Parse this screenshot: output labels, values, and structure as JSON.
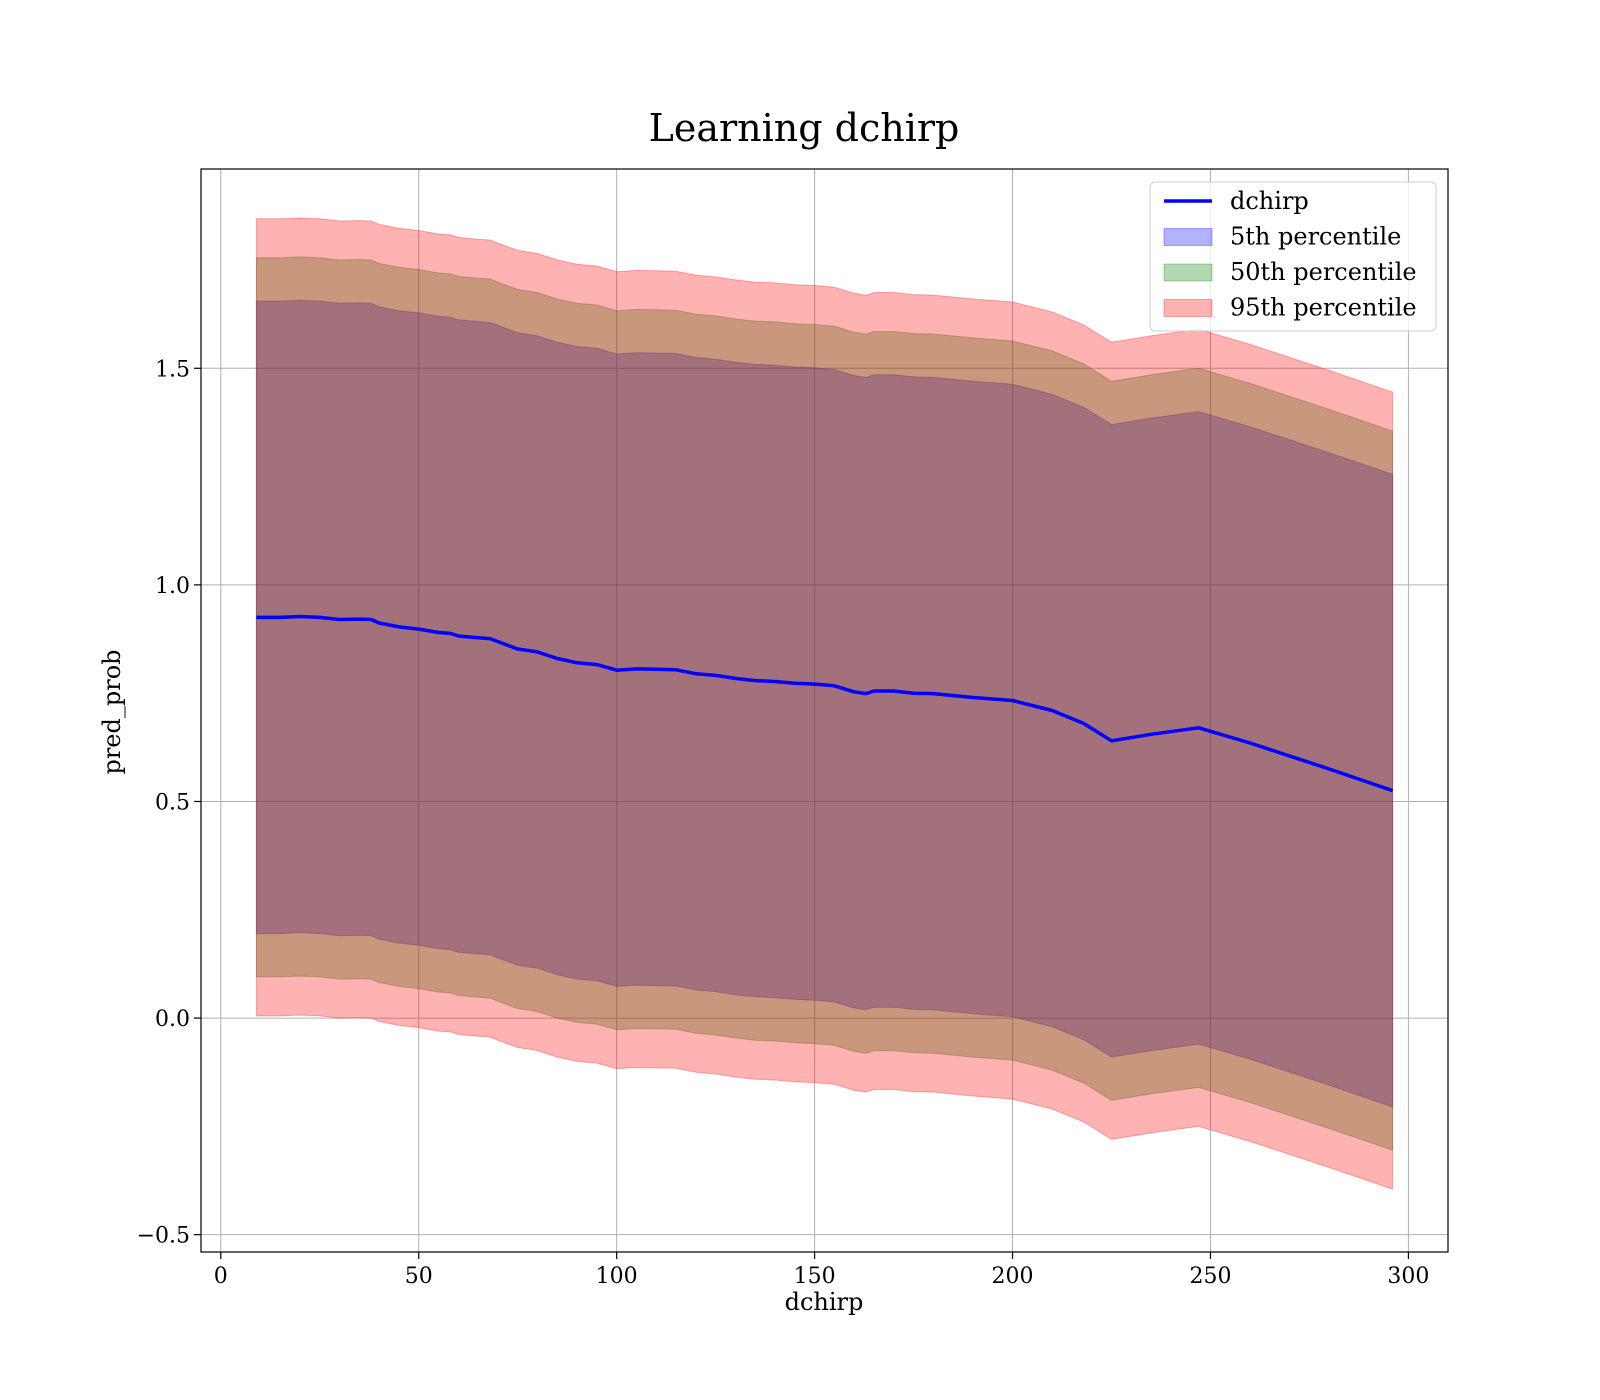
{
  "chart_data": {
    "type": "line",
    "title": "Learning dchirp",
    "xlabel": "dchirp",
    "ylabel": "pred_prob",
    "xlim": [
      -5,
      310
    ],
    "ylim": [
      -0.54,
      1.96
    ],
    "xticks": [
      0,
      50,
      100,
      150,
      200,
      250,
      300
    ],
    "yticks": [
      -0.5,
      0.0,
      0.5,
      1.0,
      1.5
    ],
    "xtick_labels": [
      "0",
      "50",
      "100",
      "150",
      "200",
      "250",
      "300"
    ],
    "ytick_labels": [
      "−0.5",
      "0.0",
      "0.5",
      "1.0",
      "1.5"
    ],
    "grid": true,
    "legend_position": "top-right",
    "x": [
      9,
      15,
      20,
      25,
      30,
      35,
      38,
      40,
      45,
      50,
      55,
      58,
      60,
      65,
      68,
      70,
      75,
      78,
      80,
      85,
      90,
      95,
      100,
      105,
      110,
      115,
      120,
      125,
      130,
      135,
      140,
      145,
      150,
      155,
      160,
      163,
      165,
      170,
      175,
      180,
      190,
      200,
      210,
      218,
      225,
      235,
      247,
      260,
      280,
      296
    ],
    "series": [
      {
        "name": "dchirp",
        "kind": "line",
        "color": "#0000ff",
        "values": [
          0.925,
          0.925,
          0.927,
          0.925,
          0.92,
          0.921,
          0.92,
          0.912,
          0.903,
          0.898,
          0.89,
          0.888,
          0.882,
          0.878,
          0.876,
          0.869,
          0.852,
          0.848,
          0.845,
          0.83,
          0.82,
          0.816,
          0.803,
          0.806,
          0.805,
          0.804,
          0.795,
          0.791,
          0.784,
          0.779,
          0.777,
          0.773,
          0.771,
          0.767,
          0.753,
          0.749,
          0.755,
          0.755,
          0.75,
          0.749,
          0.74,
          0.733,
          0.71,
          0.68,
          0.64,
          0.655,
          0.67,
          0.635,
          0.575,
          0.525
        ]
      },
      {
        "name": "5th percentile",
        "kind": "band",
        "color": "#0000ff",
        "lower": [
          0.195,
          0.195,
          0.197,
          0.195,
          0.19,
          0.191,
          0.19,
          0.182,
          0.173,
          0.168,
          0.16,
          0.158,
          0.152,
          0.148,
          0.146,
          0.139,
          0.122,
          0.118,
          0.115,
          0.1,
          0.09,
          0.086,
          0.073,
          0.076,
          0.075,
          0.074,
          0.065,
          0.061,
          0.054,
          0.049,
          0.047,
          0.043,
          0.041,
          0.037,
          0.023,
          0.019,
          0.025,
          0.025,
          0.02,
          0.019,
          0.01,
          0.003,
          -0.02,
          -0.05,
          -0.09,
          -0.075,
          -0.06,
          -0.095,
          -0.155,
          -0.205
        ],
        "upper": [
          1.655,
          1.655,
          1.657,
          1.655,
          1.65,
          1.651,
          1.65,
          1.642,
          1.633,
          1.628,
          1.62,
          1.618,
          1.612,
          1.608,
          1.606,
          1.599,
          1.582,
          1.578,
          1.575,
          1.56,
          1.55,
          1.546,
          1.533,
          1.536,
          1.535,
          1.534,
          1.525,
          1.521,
          1.514,
          1.509,
          1.507,
          1.503,
          1.501,
          1.497,
          1.483,
          1.479,
          1.485,
          1.485,
          1.48,
          1.479,
          1.47,
          1.463,
          1.44,
          1.41,
          1.37,
          1.385,
          1.4,
          1.365,
          1.305,
          1.255
        ]
      },
      {
        "name": "50th percentile",
        "kind": "band",
        "color": "#008000",
        "lower": [
          0.095,
          0.095,
          0.097,
          0.095,
          0.09,
          0.091,
          0.09,
          0.082,
          0.073,
          0.068,
          0.06,
          0.058,
          0.052,
          0.048,
          0.046,
          0.039,
          0.022,
          0.018,
          0.015,
          0.0,
          -0.01,
          -0.014,
          -0.027,
          -0.024,
          -0.025,
          -0.026,
          -0.035,
          -0.039,
          -0.046,
          -0.051,
          -0.053,
          -0.057,
          -0.059,
          -0.063,
          -0.077,
          -0.081,
          -0.075,
          -0.075,
          -0.08,
          -0.081,
          -0.09,
          -0.097,
          -0.12,
          -0.15,
          -0.19,
          -0.175,
          -0.16,
          -0.195,
          -0.255,
          -0.305
        ],
        "upper": [
          1.755,
          1.755,
          1.757,
          1.755,
          1.75,
          1.751,
          1.75,
          1.742,
          1.733,
          1.728,
          1.72,
          1.718,
          1.712,
          1.708,
          1.706,
          1.699,
          1.682,
          1.678,
          1.675,
          1.66,
          1.65,
          1.646,
          1.633,
          1.636,
          1.635,
          1.634,
          1.625,
          1.621,
          1.614,
          1.609,
          1.607,
          1.603,
          1.601,
          1.597,
          1.583,
          1.579,
          1.585,
          1.585,
          1.58,
          1.579,
          1.57,
          1.563,
          1.54,
          1.51,
          1.47,
          1.485,
          1.5,
          1.465,
          1.405,
          1.355
        ]
      },
      {
        "name": "95th percentile",
        "kind": "band",
        "color": "#ff0000",
        "lower": [
          0.005,
          0.005,
          0.007,
          0.005,
          0.0,
          0.001,
          0.0,
          -0.008,
          -0.017,
          -0.022,
          -0.03,
          -0.032,
          -0.038,
          -0.042,
          -0.044,
          -0.051,
          -0.068,
          -0.072,
          -0.075,
          -0.09,
          -0.1,
          -0.104,
          -0.117,
          -0.114,
          -0.115,
          -0.116,
          -0.125,
          -0.129,
          -0.136,
          -0.141,
          -0.143,
          -0.147,
          -0.149,
          -0.153,
          -0.167,
          -0.171,
          -0.165,
          -0.165,
          -0.17,
          -0.171,
          -0.18,
          -0.187,
          -0.21,
          -0.24,
          -0.28,
          -0.265,
          -0.25,
          -0.285,
          -0.345,
          -0.395
        ],
        "upper": [
          1.845,
          1.845,
          1.847,
          1.845,
          1.84,
          1.841,
          1.84,
          1.832,
          1.823,
          1.818,
          1.81,
          1.808,
          1.802,
          1.798,
          1.796,
          1.789,
          1.772,
          1.768,
          1.765,
          1.75,
          1.74,
          1.736,
          1.723,
          1.726,
          1.725,
          1.724,
          1.715,
          1.711,
          1.704,
          1.699,
          1.697,
          1.693,
          1.691,
          1.687,
          1.673,
          1.669,
          1.675,
          1.675,
          1.67,
          1.669,
          1.66,
          1.653,
          1.63,
          1.6,
          1.56,
          1.575,
          1.59,
          1.555,
          1.495,
          1.445
        ]
      }
    ]
  }
}
